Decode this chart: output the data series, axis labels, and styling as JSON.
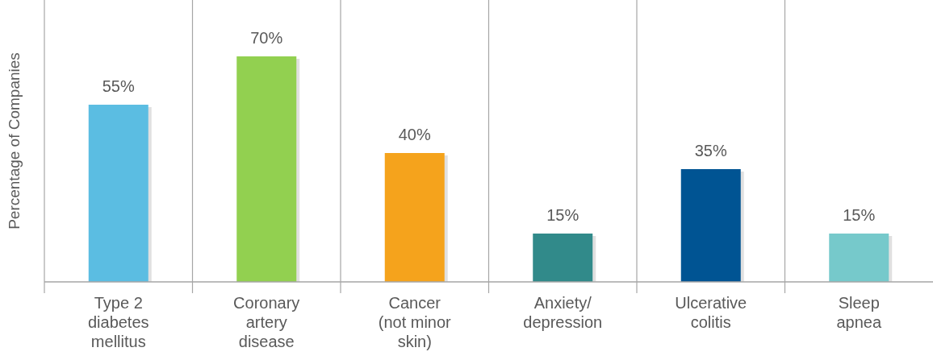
{
  "chart_data": {
    "type": "bar",
    "ylabel": "Percentage of Companies",
    "categories": [
      "Type 2 diabetes mellitus",
      "Coronary artery disease",
      "Cancer (not minor skin)",
      "Anxiety/depression",
      "Ulcerative colitis",
      "Sleep apnea"
    ],
    "values": [
      55,
      70,
      40,
      15,
      35,
      15
    ],
    "colors": [
      "#5bbde2",
      "#92d050",
      "#f5a31c",
      "#318a8a",
      "#005493",
      "#76c9cb"
    ],
    "value_labels": [
      "55%",
      "70%",
      "40%",
      "15%",
      "35%",
      "15%"
    ],
    "grid": "x"
  }
}
